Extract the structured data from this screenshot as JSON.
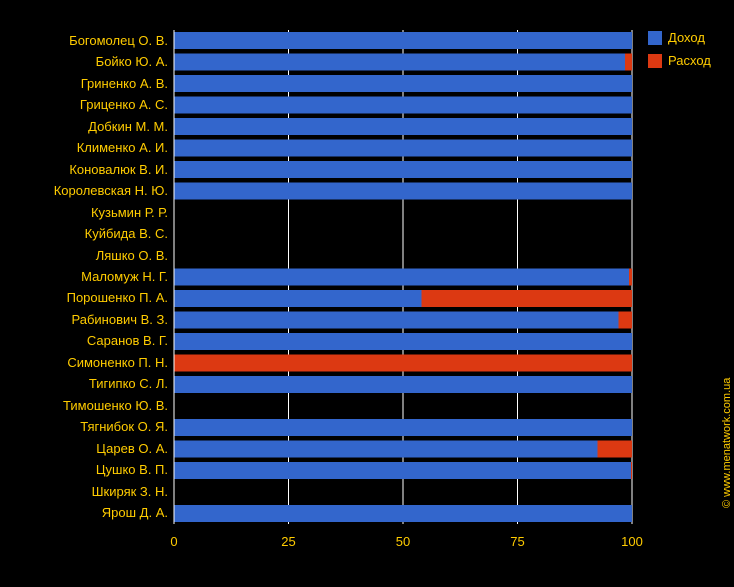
{
  "colors": {
    "background": "#000000",
    "text": "#ffcc00",
    "grid": "#ffffff",
    "income": "#3366cc",
    "expense": "#dc3912"
  },
  "watermark": "© www.menatwork.com.ua",
  "chart_data": {
    "type": "bar",
    "orientation": "horizontal",
    "stacked": true,
    "categories": [
      "Богомолец О. В.",
      "Бойко Ю. А.",
      "Гриненко А. В.",
      "Гриценко А. С.",
      "Добкин М. М.",
      "Клименко А. И.",
      "Коновалюк В. И.",
      "Королевская Н. Ю.",
      "Кузьмин Р. Р.",
      "Куйбида В. С.",
      "Ляшко О. В.",
      "Маломуж Н. Г.",
      "Порошенко П. А.",
      "Рабинович В. З.",
      "Саранов В. Г.",
      "Симоненко П. Н.",
      "Тигипко С. Л.",
      "Тимошенко Ю. В.",
      "Тягнибок О. Я.",
      "Царев О. А.",
      "Цушко В. П.",
      "Шкиряк З. Н.",
      "Ярош Д. А."
    ],
    "series": [
      {
        "name": "Доход",
        "color": "#3366cc",
        "values": [
          100,
          98.5,
          100,
          100,
          100,
          100,
          100,
          100,
          0,
          0,
          0,
          99.3,
          54,
          97,
          100,
          0,
          100,
          0,
          100,
          92.5,
          99.8,
          0,
          100
        ]
      },
      {
        "name": "Расход",
        "color": "#dc3912",
        "values": [
          0,
          1.5,
          0,
          0,
          0,
          0,
          0,
          0,
          0,
          0,
          0,
          0.7,
          46,
          3,
          0,
          100,
          0,
          0,
          0,
          7.5,
          0.2,
          0,
          0
        ]
      }
    ],
    "xlim": [
      0,
      100
    ],
    "xticks": [
      "0",
      "25",
      "50",
      "75",
      "100"
    ],
    "grid": true,
    "legend": "top-right"
  }
}
